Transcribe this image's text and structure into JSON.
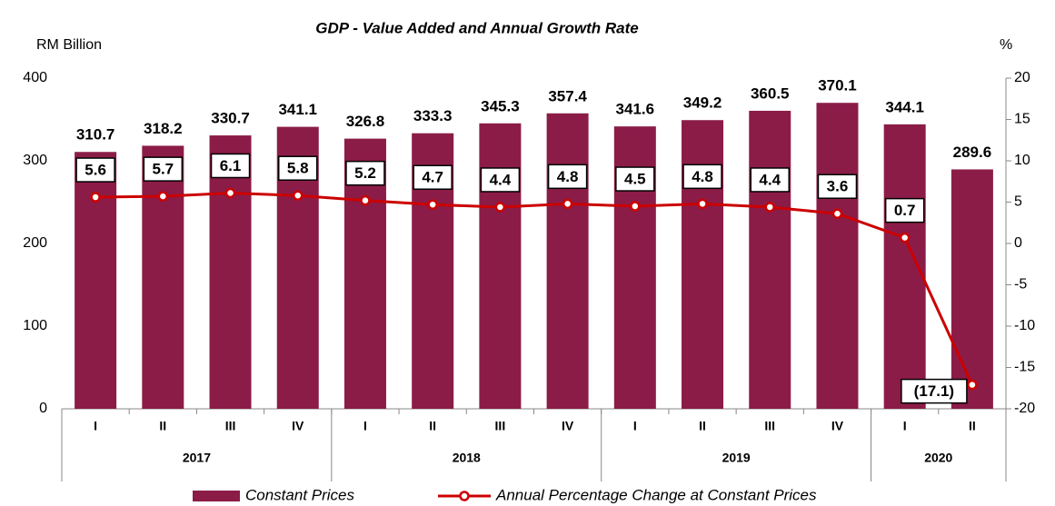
{
  "chart_data": {
    "type": "bar_line",
    "title": "GDP - Value Added and Annual Growth Rate",
    "y_label": "RM Billion",
    "y2_label": "%",
    "category_groups": [
      {
        "label": "2017",
        "categories": [
          "I",
          "II",
          "III",
          "IV"
        ]
      },
      {
        "label": "2018",
        "categories": [
          "I",
          "II",
          "III",
          "IV"
        ]
      },
      {
        "label": "2019",
        "categories": [
          "I",
          "II",
          "III",
          "IV"
        ]
      },
      {
        "label": "2020",
        "categories": [
          "I",
          "II"
        ]
      }
    ],
    "series": [
      {
        "name": "Constant Prices",
        "type": "bar",
        "color": "#8b1c48",
        "values": [
          310.7,
          318.2,
          330.7,
          341.1,
          326.8,
          333.3,
          345.3,
          357.4,
          341.6,
          349.2,
          360.5,
          370.1,
          344.1,
          289.6
        ]
      },
      {
        "name": "Annual Percentage Change at Constant Prices",
        "type": "line",
        "axis": "y2",
        "color": "#cc0000",
        "values": [
          5.6,
          5.7,
          6.1,
          5.8,
          5.2,
          4.7,
          4.4,
          4.8,
          4.5,
          4.8,
          4.4,
          3.6,
          0.7,
          -17.1
        ],
        "value_labels": [
          "5.6",
          "5.7",
          "6.1",
          "5.8",
          "5.2",
          "4.7",
          "4.4",
          "4.8",
          "4.5",
          "4.8",
          "4.4",
          "3.6",
          "0.7",
          "(17.1)"
        ]
      }
    ],
    "ylim": [
      0,
      400
    ],
    "yticks": [
      0,
      100,
      200,
      300,
      400
    ],
    "y2lim": [
      -20,
      20
    ],
    "y2ticks": [
      -20,
      -15,
      -10,
      -5,
      0,
      5,
      10,
      15,
      20
    ],
    "legend": "bottom"
  }
}
